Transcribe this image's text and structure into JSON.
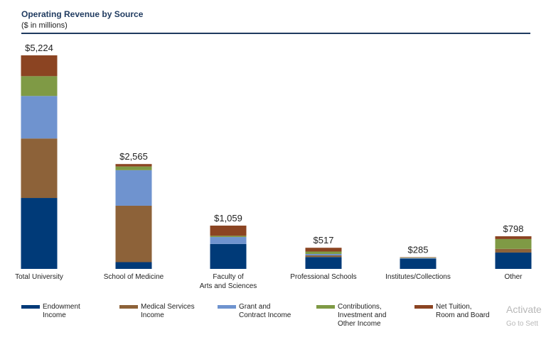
{
  "chart_data": {
    "type": "bar",
    "stacked": true,
    "title": "Operating Revenue by Source",
    "subtitle": "($ in millions)",
    "categories": [
      "Total University",
      "School of Medicine",
      "Faculty of\nArts and Sciences",
      "Professional Schools",
      "Institutes/Collections",
      "Other"
    ],
    "totals_labels": [
      "$5,224",
      "$2,565",
      "$1,059",
      "$517",
      "$285",
      "$798"
    ],
    "series": [
      {
        "name": "Endowment\nIncome",
        "color": "#003a78",
        "values": [
          1735,
          165,
          610,
          290,
          250,
          400
        ]
      },
      {
        "name": "Medical Services\nIncome",
        "color": "#8d6239",
        "values": [
          1455,
          1380,
          0,
          40,
          0,
          90
        ]
      },
      {
        "name": "Grant and\nContract Income",
        "color": "#6f93cf",
        "values": [
          1040,
          870,
          170,
          35,
          15,
          0
        ]
      },
      {
        "name": "Contributions,\nInvestment and\nOther Income",
        "color": "#7f9a45",
        "values": [
          485,
          90,
          30,
          60,
          10,
          240
        ]
      },
      {
        "name": "Net Tuition,\nRoom and Board",
        "color": "#8b4422",
        "values": [
          509,
          60,
          249,
          92,
          10,
          68
        ]
      }
    ],
    "ylim": [
      0,
      5224
    ],
    "legend_position": "bottom",
    "grid": false
  },
  "watermark": {
    "line1": "Activate",
    "line2": "Go to Sett"
  }
}
